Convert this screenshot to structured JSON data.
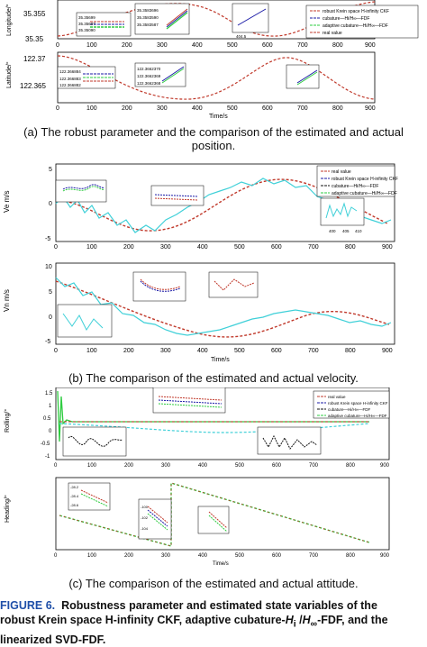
{
  "figure": {
    "label": "FIGURE 6.",
    "caption_line1": "Robustness parameter and estimated state variables of the",
    "caption_line2": "robust Krein space H-infinity CKF, adaptive cubature-",
    "caption_hi": "H",
    "caption_hi_sub": "i",
    "caption_mid": " /",
    "caption_hinf": "H",
    "caption_hinf_sub": "∞",
    "caption_line2_end": "-FDF, and the",
    "caption_line3": "linearized SVD-FDF."
  },
  "subcaptions": {
    "a_line1": "(a) The robust parameter and the comparison of the estimated and actual",
    "a_line2": "position.",
    "b": "(b) The comparison of the estimated and actual velocity.",
    "c": "(c) The comparison of the estimated and actual attitude."
  },
  "colors": {
    "real": "#c0392b",
    "krein": "#1a1aa6",
    "cubature": "#111111",
    "adaptive": "#2ecc40",
    "cyan": "#3fd0d8"
  },
  "legend_a": [
    "robust Krein space H-infinity CKF",
    "cubature—Hi/H∞—FDF",
    "adaptive cubature—Hi/H∞—FDF",
    "real value"
  ],
  "legend_b": [
    "real value",
    "robust Krein space H-infinity CKF",
    "cubature—Hi/H∞—FDF",
    "adaptive cubature—Hi/H∞—FDF"
  ],
  "legend_c": [
    "real value",
    "robust Krein space H-infinity CKF",
    "cubature—Hi/H∞—FDF",
    "adaptive cubature—Hi/H∞—FDF"
  ],
  "chart_data": [
    {
      "type": "line",
      "title": "",
      "ylabel": "Longitude/°",
      "xlabel": "",
      "xlim": [
        0,
        900
      ],
      "ylim": [
        35.35,
        35.355
      ],
      "x_ticks": [
        "0",
        "100",
        "200",
        "300",
        "400",
        "500",
        "600",
        "700",
        "800",
        "900"
      ],
      "y_ticks": [
        "35.35",
        "35.355"
      ],
      "inset_labels": [
        "35.35699",
        "35.35607",
        "35.35090",
        "35.3583696",
        "35.3583590",
        "35.3583587",
        "84",
        "85",
        "86",
        "180",
        "185",
        "404.5",
        "405"
      ]
    },
    {
      "type": "line",
      "title": "",
      "ylabel": "Latitude/°",
      "xlabel": "Time/s",
      "xlim": [
        0,
        900
      ],
      "ylim": [
        122.365,
        122.37
      ],
      "x_ticks": [
        "0",
        "100",
        "200",
        "300",
        "400",
        "500",
        "600",
        "700",
        "800",
        "900"
      ],
      "y_ticks": [
        "122.365",
        "122.37"
      ],
      "inset_labels": [
        "122.366884",
        "122.366883",
        "122.366882",
        "122.366881",
        "122.366845",
        "122.3662370",
        "122.3662369",
        "122.3662368",
        "122.3626389",
        "122.3626385",
        "84",
        "84.5",
        "85",
        "188",
        "403",
        "403.5"
      ]
    },
    {
      "type": "line",
      "title": "",
      "ylabel": "Ve m/s",
      "xlabel": "",
      "xlim": [
        0,
        900
      ],
      "ylim": [
        -5,
        5
      ],
      "x_ticks": [
        "0",
        "100",
        "200",
        "300",
        "400",
        "500",
        "600",
        "700",
        "800",
        "900"
      ],
      "y_ticks": [
        "-5",
        "0",
        "5"
      ],
      "inset_labels": [
        "-1",
        "-2",
        "50",
        "60",
        "70",
        "0",
        "-1",
        "400",
        "405",
        "410"
      ]
    },
    {
      "type": "line",
      "title": "",
      "ylabel": "Vn m/s",
      "xlabel": "Time/s",
      "xlim": [
        0,
        900
      ],
      "ylim": [
        -5,
        10
      ],
      "x_ticks": [
        "0",
        "100",
        "200",
        "300",
        "400",
        "500",
        "600",
        "700",
        "800",
        "900"
      ],
      "y_ticks": [
        "-5",
        "0",
        "5",
        "10"
      ],
      "inset_labels": [
        "-0.5",
        "-1",
        "-1.5",
        "50",
        "60",
        "70",
        "1",
        "0",
        "-1",
        "180",
        "190",
        "200",
        "400",
        "405",
        "410"
      ]
    },
    {
      "type": "line",
      "title": "",
      "ylabel": "Rolling/°",
      "xlabel": "",
      "xlim": [
        0,
        900
      ],
      "ylim": [
        -1,
        1.5
      ],
      "x_ticks": [
        "0",
        "100",
        "200",
        "300",
        "400",
        "500",
        "600",
        "700",
        "800",
        "900"
      ],
      "y_ticks": [
        "-1",
        "-0.5",
        "0",
        "0.5",
        "1",
        "1.5"
      ],
      "inset_labels": [
        "0.3",
        "0.2",
        "0.1",
        "0",
        "-0.1",
        "-0.2"
      ]
    },
    {
      "type": "line",
      "title": "",
      "ylabel": "Heading/°",
      "xlabel": "Time/s",
      "xlim": [
        0,
        900
      ],
      "ylim": [
        -180,
        180
      ],
      "x_ticks": [
        "0",
        "100",
        "200",
        "300",
        "400",
        "500",
        "600",
        "700",
        "800",
        "900"
      ],
      "y_ticks": [],
      "inset_labels": [
        "-28.2",
        "-28.4",
        "-28.6",
        "-100",
        "-101",
        "-102",
        "-103",
        "-104",
        "128.16",
        "128.14",
        "128.12",
        "406",
        "407"
      ]
    }
  ]
}
